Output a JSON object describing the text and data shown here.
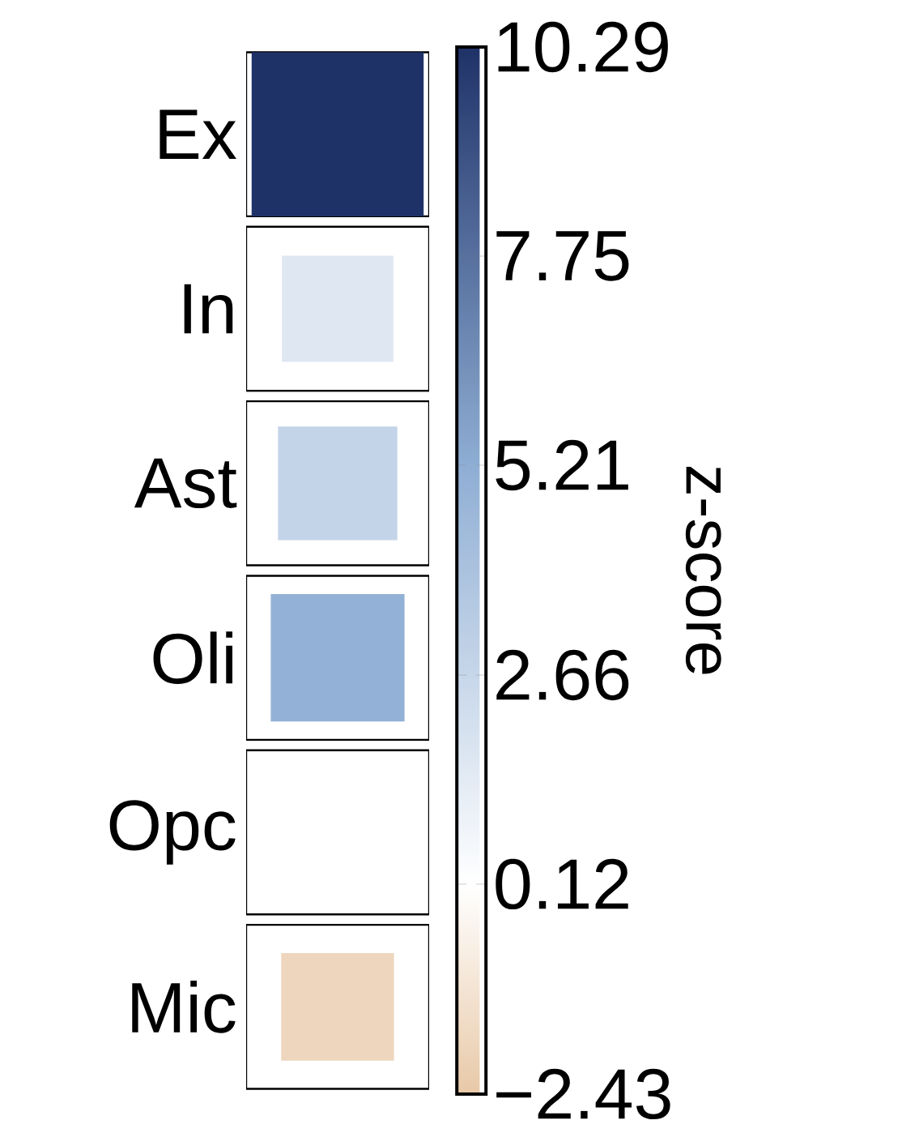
{
  "chart_data": {
    "type": "heatmap",
    "categories": [
      null
    ],
    "y_categories": [
      "Ex",
      "In",
      "Ast",
      "Oli",
      "Opc",
      "Mic"
    ],
    "cells": [
      [
        10.29
      ],
      [
        1.6
      ],
      [
        2.8
      ],
      [
        5.0
      ],
      [
        null
      ],
      [
        -1.8
      ]
    ],
    "clim": [
      -2.43,
      10.29
    ],
    "cticks": [
      {
        "value": 10.29,
        "label": "10.29"
      },
      {
        "value": 7.75,
        "label": "7.75"
      },
      {
        "value": 5.21,
        "label": "5.21"
      },
      {
        "value": 2.66,
        "label": "2.66"
      },
      {
        "value": 0.12,
        "label": "0.12"
      },
      {
        "value": -2.43,
        "label": "−2.43"
      }
    ],
    "clabel": "z-score"
  }
}
